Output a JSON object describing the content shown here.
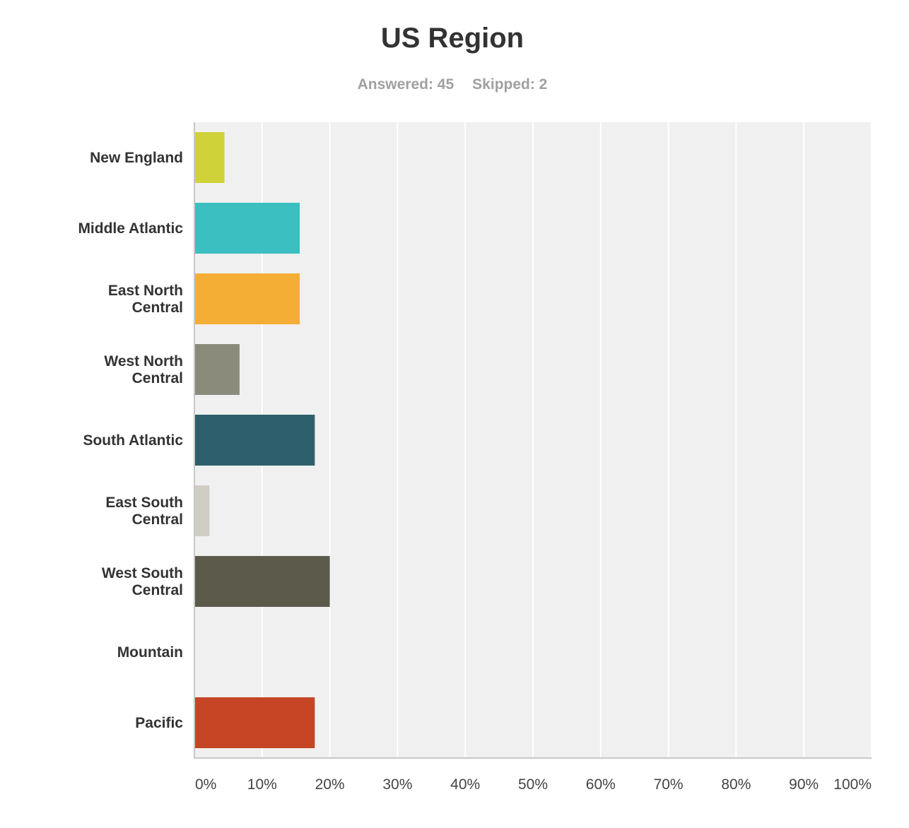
{
  "chart_data": {
    "type": "bar",
    "orientation": "horizontal",
    "title": "US Region",
    "subtitle": {
      "answered": "Answered: 45",
      "skipped": "Skipped: 2"
    },
    "categories": [
      [
        "New England"
      ],
      [
        "Middle Atlantic"
      ],
      [
        "East North",
        "Central"
      ],
      [
        "West North",
        "Central"
      ],
      [
        "South Atlantic"
      ],
      [
        "East South",
        "Central"
      ],
      [
        "West South",
        "Central"
      ],
      [
        "Mountain"
      ],
      [
        "Pacific"
      ]
    ],
    "values": [
      4.44,
      15.56,
      15.56,
      6.67,
      17.78,
      2.22,
      20.0,
      0,
      17.78
    ],
    "colors": [
      "#d0d23a",
      "#3cbfc0",
      "#f5ae35",
      "#8b8b7b",
      "#2e5f6c",
      "#cfcdc1",
      "#5c5b4b",
      "#999999",
      "#c64524"
    ],
    "xlim": [
      0,
      100
    ],
    "x_ticks": [
      "0%",
      "10%",
      "20%",
      "30%",
      "40%",
      "50%",
      "60%",
      "70%",
      "80%",
      "90%",
      "100%"
    ],
    "grid": true,
    "background_color": "#f0f0f0",
    "legend": "none"
  }
}
